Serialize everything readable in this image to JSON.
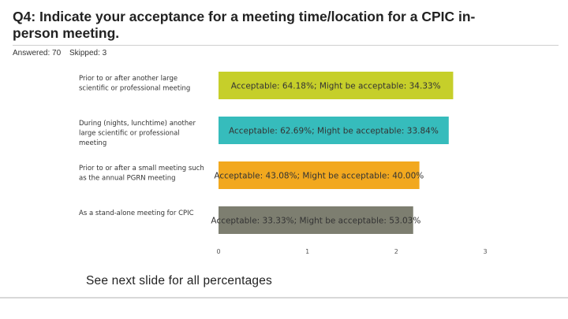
{
  "header": {
    "title": "Q4: Indicate your acceptance for a meeting time/location for a CPIC in-person meeting.",
    "answered": "Answered: 70",
    "skipped": "Skipped: 3"
  },
  "footnote": "See next slide for all percentages",
  "chart_data": {
    "type": "bar",
    "orientation": "horizontal",
    "title": "",
    "xlabel": "",
    "ylabel": "",
    "xlim": [
      0,
      3
    ],
    "ticks": [
      "0",
      "1",
      "2",
      "3"
    ],
    "grid": false,
    "categories": [
      [
        "Prior to or after another large",
        "scientific or professional meeting"
      ],
      [
        "During (nights, lunchtime) another",
        "large scientific or professional",
        "meeting"
      ],
      [
        "Prior to or after a small meeting such",
        "as the annual PGRN meeting"
      ],
      [
        "As a stand-alone meeting for CPIC"
      ]
    ],
    "values": [
      2.64,
      2.59,
      2.26,
      2.19
    ],
    "bar_labels": [
      "Acceptable: 64.18%; Might be acceptable: 34.33%",
      "Acceptable: 62.69%; Might be acceptable: 33.84%",
      "Acceptable: 43.08%; Might be acceptable: 40.00%",
      "Acceptable: 33.33%; Might be acceptable: 53.03%"
    ],
    "colors": [
      "#c6cf2a",
      "#36bcbc",
      "#f2a81e",
      "#7d7e70"
    ]
  }
}
